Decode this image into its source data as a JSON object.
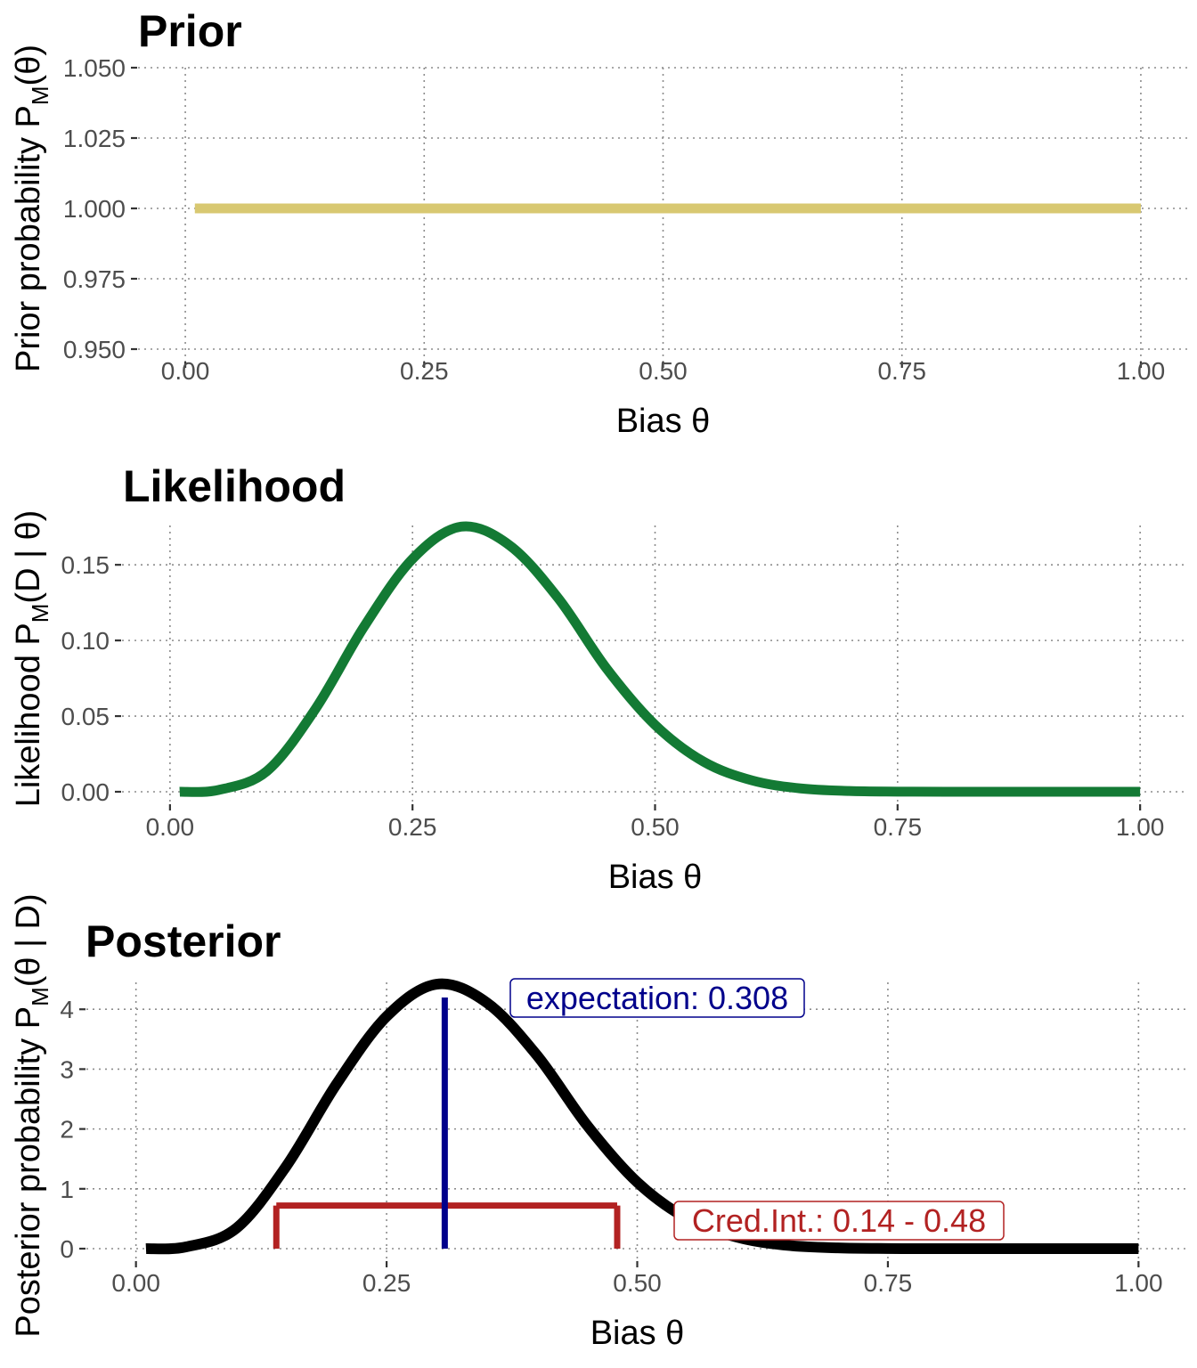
{
  "colors": {
    "prior": "#d8c871",
    "likelihood": "#137a34",
    "posterior": "#000000",
    "expectation": "#00008b",
    "credible_interval": "#b22222"
  },
  "chart_data": [
    {
      "type": "line",
      "title": "Prior",
      "xlabel": "Bias θ",
      "ylabel": {
        "prefix": "Prior probability P",
        "sub": "M",
        "suffix": "(θ)"
      },
      "xlim": [
        0,
        1
      ],
      "ylim": [
        0.95,
        1.05
      ],
      "x_ticks": [
        0,
        0.25,
        0.5,
        0.75,
        1
      ],
      "x_tick_labels": [
        "0.00",
        "0.25",
        "0.50",
        "0.75",
        "1.00"
      ],
      "y_ticks": [
        0.95,
        0.975,
        1.0,
        1.025,
        1.05
      ],
      "y_tick_labels": [
        "0.950",
        "0.975",
        "1.000",
        "1.025",
        "1.050"
      ],
      "grid": true,
      "series": [
        {
          "x": [
            0.01,
            1.0
          ],
          "y": [
            1.0,
            1.0
          ]
        }
      ]
    },
    {
      "type": "line",
      "title": "Likelihood",
      "xlabel": "Bias θ",
      "ylabel": {
        "prefix": "Likelihood P",
        "sub": "M",
        "suffix": "(D | θ)"
      },
      "xlim": [
        0,
        1
      ],
      "ylim": [
        0,
        0.176
      ],
      "x_ticks": [
        0,
        0.25,
        0.5,
        0.75,
        1
      ],
      "x_tick_labels": [
        "0.00",
        "0.25",
        "0.50",
        "0.75",
        "1.00"
      ],
      "y_ticks": [
        0,
        0.05,
        0.1,
        0.15
      ],
      "y_tick_labels": [
        "0.00",
        "0.05",
        "0.10",
        "0.15"
      ],
      "grid": true,
      "series": [
        {
          "x": [
            0.01,
            0.05,
            0.1,
            0.15,
            0.2,
            0.25,
            0.3,
            0.35,
            0.4,
            0.45,
            0.5,
            0.55,
            0.6,
            0.65,
            0.7,
            0.75,
            0.8,
            0.9,
            1.0
          ],
          "y": [
            0.0,
            0.0012,
            0.0137,
            0.0548,
            0.1091,
            0.1539,
            0.1752,
            0.1629,
            0.1281,
            0.0815,
            0.0442,
            0.0199,
            0.0075,
            0.0022,
            0.0005,
            0.0001,
            0.0,
            0.0,
            0.0
          ]
        }
      ]
    },
    {
      "type": "line",
      "title": "Posterior",
      "xlabel": "Bias θ",
      "ylabel": {
        "prefix": "Posterior probability P",
        "sub": "M",
        "suffix": "(θ | D)"
      },
      "xlim": [
        0,
        1
      ],
      "ylim": [
        0,
        4.45
      ],
      "x_ticks": [
        0,
        0.25,
        0.5,
        0.75,
        1
      ],
      "x_tick_labels": [
        "0.00",
        "0.25",
        "0.50",
        "0.75",
        "1.00"
      ],
      "y_ticks": [
        0,
        1,
        2,
        3,
        4
      ],
      "y_tick_labels": [
        "0",
        "1",
        "2",
        "3",
        "4"
      ],
      "grid": true,
      "series": [
        {
          "x": [
            0.01,
            0.05,
            0.1,
            0.15,
            0.2,
            0.25,
            0.3,
            0.35,
            0.4,
            0.45,
            0.5,
            0.55,
            0.6,
            0.65,
            0.7,
            0.75,
            0.8,
            0.9,
            1.0
          ],
          "y": [
            0.0,
            0.03,
            0.34,
            1.38,
            2.75,
            3.88,
            4.42,
            4.11,
            3.23,
            2.06,
            1.11,
            0.5,
            0.19,
            0.055,
            0.013,
            0.002,
            0.0,
            0.0,
            0.0
          ]
        }
      ],
      "expectation": {
        "value": 0.308,
        "label": "expectation: 0.308"
      },
      "credible_interval": {
        "low": 0.14,
        "high": 0.48,
        "height": 0.72,
        "label": "Cred.Int.: 0.14 - 0.48"
      }
    }
  ]
}
